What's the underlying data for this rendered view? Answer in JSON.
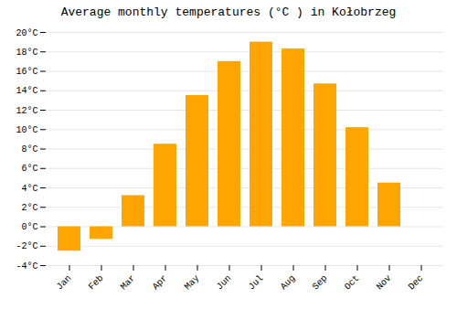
{
  "chart_data": {
    "type": "bar",
    "title": "Average monthly temperatures (°C ) in Kołobrzeg",
    "categories": [
      "Jan",
      "Feb",
      "Mar",
      "Apr",
      "May",
      "Jun",
      "Jul",
      "Aug",
      "Sep",
      "Oct",
      "Nov",
      "Dec"
    ],
    "values": [
      -2.5,
      -1.3,
      3.2,
      8.5,
      13.5,
      17.0,
      19.0,
      18.3,
      14.7,
      10.2,
      4.5,
      0.0
    ],
    "color": "#FFA500",
    "ylim": [
      -4,
      20
    ],
    "yticks": [
      {
        "value": -4,
        "label": "-4°C"
      },
      {
        "value": -2,
        "label": "-2°C"
      },
      {
        "value": 0,
        "label": "0°C"
      },
      {
        "value": 2,
        "label": "2°C"
      },
      {
        "value": 4,
        "label": "4°C"
      },
      {
        "value": 6,
        "label": "6°C"
      },
      {
        "value": 8,
        "label": "8°C"
      },
      {
        "value": 10,
        "label": "10°C"
      },
      {
        "value": 12,
        "label": "12°C"
      },
      {
        "value": 14,
        "label": "14°C"
      },
      {
        "value": 16,
        "label": "16°C"
      },
      {
        "value": 18,
        "label": "18°C"
      },
      {
        "value": 20,
        "label": "20°C"
      }
    ],
    "grid": true
  }
}
